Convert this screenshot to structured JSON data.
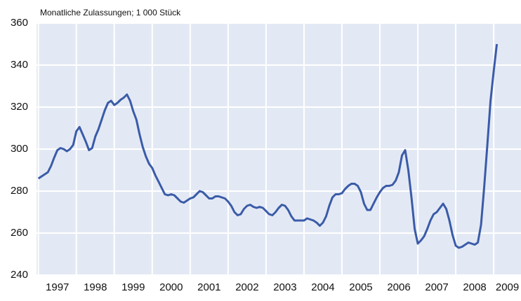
{
  "chart_data": {
    "type": "line",
    "title": "Monatliche Zulassungen; 1 000 Stück",
    "x": [
      1997,
      1997.083,
      1997.167,
      1997.25,
      1997.333,
      1997.417,
      1997.5,
      1997.583,
      1997.667,
      1997.75,
      1997.833,
      1997.917,
      1998,
      1998.083,
      1998.167,
      1998.25,
      1998.333,
      1998.417,
      1998.5,
      1998.583,
      1998.667,
      1998.75,
      1998.833,
      1998.917,
      1999,
      1999.083,
      1999.167,
      1999.25,
      1999.333,
      1999.417,
      1999.5,
      1999.583,
      1999.667,
      1999.75,
      1999.833,
      1999.917,
      2000,
      2000.083,
      2000.167,
      2000.25,
      2000.333,
      2000.417,
      2000.5,
      2000.583,
      2000.667,
      2000.75,
      2000.833,
      2000.917,
      2001,
      2001.083,
      2001.167,
      2001.25,
      2001.333,
      2001.417,
      2001.5,
      2001.583,
      2001.667,
      2001.75,
      2001.833,
      2001.917,
      2002,
      2002.083,
      2002.167,
      2002.25,
      2002.333,
      2002.417,
      2002.5,
      2002.583,
      2002.667,
      2002.75,
      2002.833,
      2002.917,
      2003,
      2003.083,
      2003.167,
      2003.25,
      2003.333,
      2003.417,
      2003.5,
      2003.583,
      2003.667,
      2003.75,
      2003.833,
      2003.917,
      2004,
      2004.083,
      2004.167,
      2004.25,
      2004.333,
      2004.417,
      2004.5,
      2004.583,
      2004.667,
      2004.75,
      2004.833,
      2004.917,
      2005,
      2005.083,
      2005.167,
      2005.25,
      2005.333,
      2005.417,
      2005.5,
      2005.583,
      2005.667,
      2005.75,
      2005.833,
      2005.917,
      2006,
      2006.083,
      2006.167,
      2006.25,
      2006.333,
      2006.417,
      2006.5,
      2006.583,
      2006.667,
      2006.75,
      2006.833,
      2006.917,
      2007,
      2007.083,
      2007.167,
      2007.25,
      2007.333,
      2007.417,
      2007.5,
      2007.583,
      2007.667,
      2007.75,
      2007.833,
      2007.917,
      2008,
      2008.083,
      2008.167,
      2008.25,
      2008.333,
      2008.417,
      2008.5,
      2008.583,
      2008.667,
      2008.75,
      2008.833,
      2008.917,
      2009,
      2009.083
    ],
    "series": [
      {
        "color": "#3a5ba8",
        "values": [
          286,
          287,
          288,
          289,
          292,
          296,
          299.5,
          300.5,
          300,
          299,
          300,
          302,
          308.5,
          310.5,
          307,
          303.5,
          299.5,
          300.5,
          306,
          309.5,
          314,
          318.5,
          322,
          323,
          321,
          322,
          323.5,
          324.5,
          326,
          323,
          318,
          314,
          307,
          301,
          296.5,
          293,
          291,
          287.5,
          284.5,
          281.5,
          278.5,
          278,
          278.5,
          278,
          276.5,
          275,
          274.5,
          275.5,
          276.5,
          277,
          278.5,
          280,
          279.5,
          278,
          276.5,
          276.5,
          277.5,
          277.5,
          277,
          276.5,
          275,
          273,
          270,
          268.5,
          269,
          271.5,
          273,
          273.5,
          272.5,
          272,
          272.5,
          272,
          270.5,
          269,
          268.5,
          270,
          272,
          273.5,
          273,
          271,
          268,
          266,
          266,
          266,
          266,
          267,
          266.5,
          266,
          265,
          263.5,
          265,
          268,
          273,
          277,
          278.5,
          278.5,
          279,
          281,
          282.5,
          283.5,
          283.5,
          282.5,
          279.5,
          274,
          271,
          271,
          274,
          277,
          279.5,
          281.5,
          282.5,
          282.5,
          283,
          285,
          289,
          297,
          299.5,
          290,
          277,
          262,
          255,
          256.5,
          258.5,
          262,
          266,
          269,
          270,
          272,
          274,
          271.5,
          266,
          259,
          254,
          253,
          253.5,
          254.5,
          255.5,
          255,
          254.5,
          255.5,
          264,
          282,
          302,
          323,
          337,
          350
        ]
      }
    ],
    "xlim": [
      1996.95,
      2009.72
    ],
    "xticks": [
      {
        "value": 1997,
        "label": "1997"
      },
      {
        "value": 1998,
        "label": "1998"
      },
      {
        "value": 1999,
        "label": "1999"
      },
      {
        "value": 2000,
        "label": "2000"
      },
      {
        "value": 2001,
        "label": "2001"
      },
      {
        "value": 2002,
        "label": "2002"
      },
      {
        "value": 2003,
        "label": "2003"
      },
      {
        "value": 2004,
        "label": "2004"
      },
      {
        "value": 2005,
        "label": "2005"
      },
      {
        "value": 2006,
        "label": "2006"
      },
      {
        "value": 2007,
        "label": "2007"
      },
      {
        "value": 2008,
        "label": "2008"
      },
      {
        "value": 2009,
        "label": "2009"
      }
    ],
    "ylim": [
      240,
      360
    ],
    "yticks": [
      240,
      260,
      280,
      300,
      320,
      340,
      360
    ],
    "grid": true
  }
}
